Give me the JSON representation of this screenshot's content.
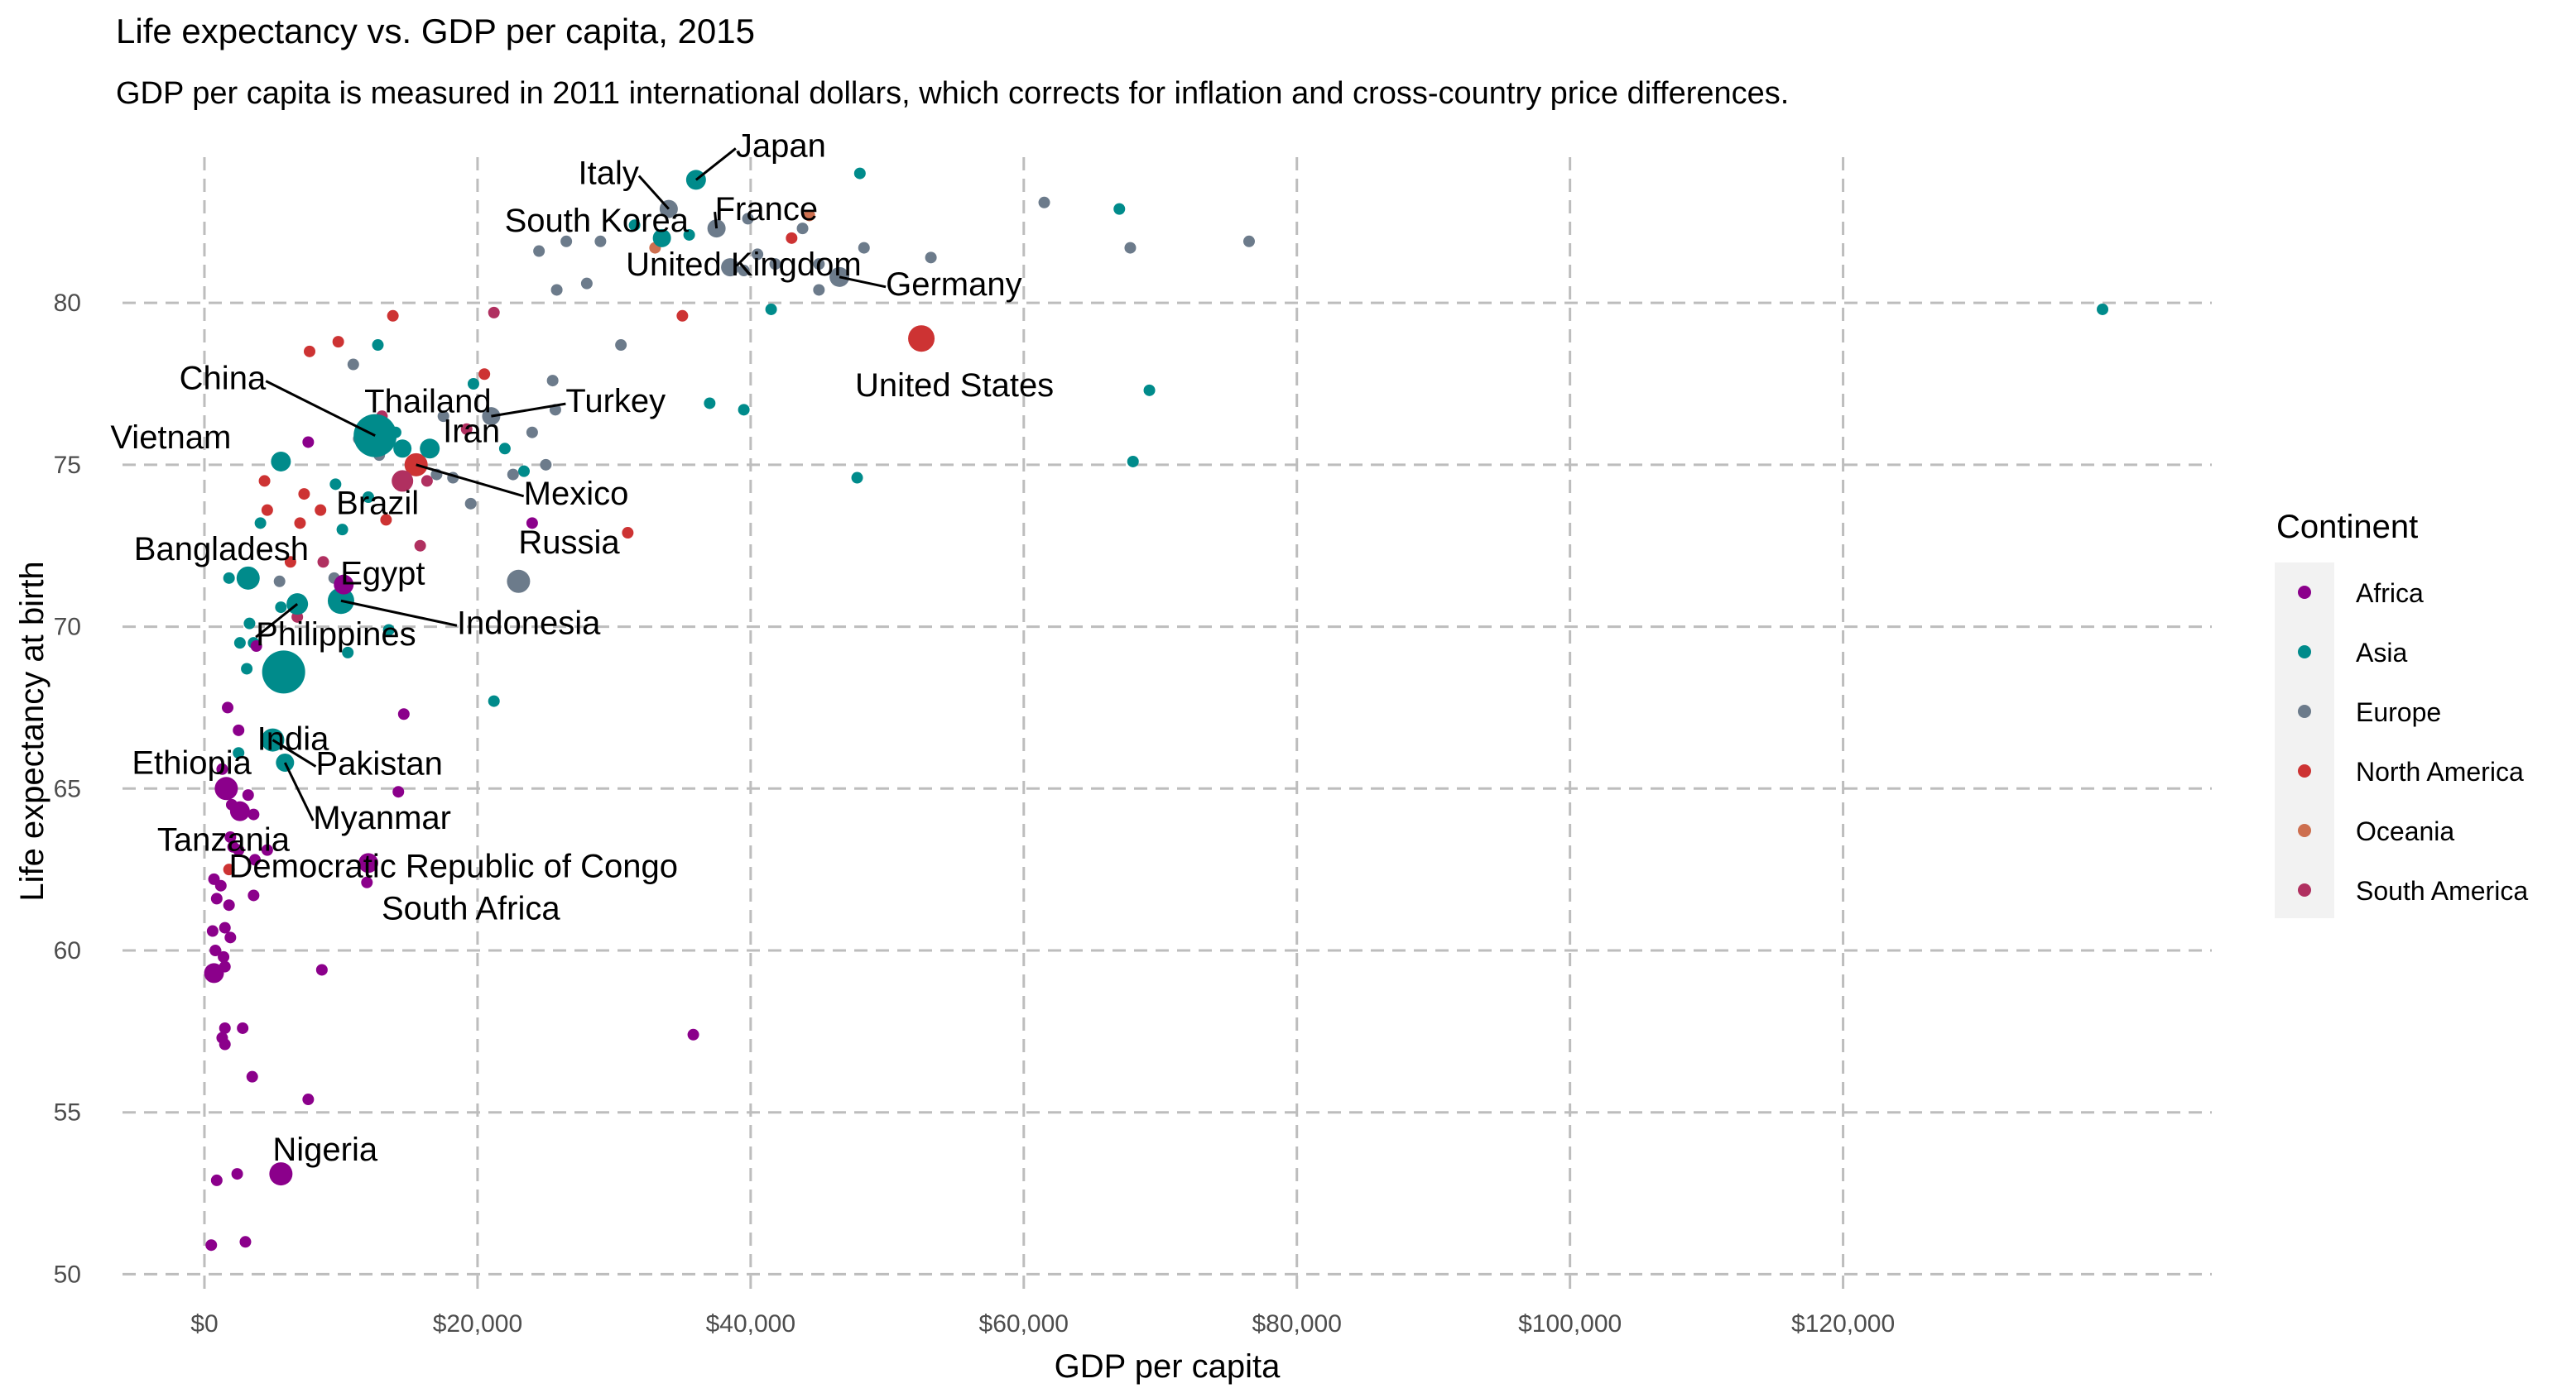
{
  "chart_data": {
    "type": "scatter",
    "title": "Life expectancy vs. GDP per capita, 2015",
    "subtitle": "GDP per capita is measured in 2011 international dollars, which corrects for inflation and cross-country price differences.",
    "xlabel": "GDP per capita",
    "ylabel": "Life expectancy at birth",
    "xlim": [
      -6000,
      147000
    ],
    "ylim": [
      49.5,
      84.5
    ],
    "x_ticks": [
      0,
      20000,
      40000,
      60000,
      80000,
      100000,
      120000
    ],
    "x_tick_labels": [
      "$0",
      "$20,000",
      "$40,000",
      "$60,000",
      "$80,000",
      "$100,000",
      "$120,000"
    ],
    "y_ticks": [
      50,
      55,
      60,
      65,
      70,
      75,
      80
    ],
    "y_tick_labels": [
      "50",
      "55",
      "60",
      "65",
      "70",
      "75",
      "80"
    ],
    "grid": true,
    "legend_position": "right",
    "legend_title": "Continent",
    "continents": [
      {
        "name": "Africa",
        "color": "#8B008B"
      },
      {
        "name": "Asia",
        "color": "#008B8B"
      },
      {
        "name": "Europe",
        "color": "#6C7B8B"
      },
      {
        "name": "North America",
        "color": "#CD3333"
      },
      {
        "name": "Oceania",
        "color": "#CD6F4F"
      },
      {
        "name": "South America",
        "color": "#B03060"
      }
    ],
    "labeled_points": [
      {
        "label": "Japan",
        "x": 36000,
        "y": 83.8,
        "continent": "Asia",
        "r": 12
      },
      {
        "label": "Italy",
        "x": 34000,
        "y": 82.9,
        "continent": "Europe",
        "r": 11
      },
      {
        "label": "France",
        "x": 37500,
        "y": 82.3,
        "continent": "Europe",
        "r": 11
      },
      {
        "label": "South Korea",
        "x": 33500,
        "y": 82.0,
        "continent": "Asia",
        "r": 11
      },
      {
        "label": "United Kingdom",
        "x": 38500,
        "y": 81.1,
        "continent": "Europe",
        "r": 11
      },
      {
        "label": "Germany",
        "x": 46500,
        "y": 80.8,
        "continent": "Europe",
        "r": 12
      },
      {
        "label": "United States",
        "x": 52500,
        "y": 78.9,
        "continent": "North America",
        "r": 16
      },
      {
        "label": "Turkey",
        "x": 21000,
        "y": 76.5,
        "continent": "Europe",
        "r": 11
      },
      {
        "label": "China",
        "x": 12500,
        "y": 75.9,
        "continent": "Asia",
        "r": 26
      },
      {
        "label": "Thailand",
        "x": 14500,
        "y": 75.5,
        "continent": "Asia",
        "r": 11
      },
      {
        "label": "Iran",
        "x": 16500,
        "y": 75.5,
        "continent": "Asia",
        "r": 12
      },
      {
        "label": "Vietnam",
        "x": 5600,
        "y": 75.1,
        "continent": "Asia",
        "r": 12
      },
      {
        "label": "Mexico",
        "x": 15500,
        "y": 75.0,
        "continent": "North America",
        "r": 14
      },
      {
        "label": "Brazil",
        "x": 14500,
        "y": 74.5,
        "continent": "South America",
        "r": 13
      },
      {
        "label": "Russia",
        "x": 23000,
        "y": 71.4,
        "continent": "Europe",
        "r": 14
      },
      {
        "label": "Bangladesh",
        "x": 3200,
        "y": 71.5,
        "continent": "Asia",
        "r": 14
      },
      {
        "label": "Egypt",
        "x": 10200,
        "y": 71.3,
        "continent": "Africa",
        "r": 12
      },
      {
        "label": "Indonesia",
        "x": 10000,
        "y": 70.8,
        "continent": "Asia",
        "r": 16
      },
      {
        "label": "Philippines",
        "x": 6800,
        "y": 70.7,
        "continent": "Asia",
        "r": 13
      },
      {
        "label": "India",
        "x": 5800,
        "y": 68.6,
        "continent": "Asia",
        "r": 26
      },
      {
        "label": "Pakistan",
        "x": 5000,
        "y": 66.5,
        "continent": "Asia",
        "r": 14
      },
      {
        "label": "Myanmar",
        "x": 5900,
        "y": 65.8,
        "continent": "Asia",
        "r": 11
      },
      {
        "label": "Ethiopia",
        "x": 1600,
        "y": 65.0,
        "continent": "Africa",
        "r": 14
      },
      {
        "label": "Tanzania",
        "x": 2600,
        "y": 64.3,
        "continent": "Africa",
        "r": 12
      },
      {
        "label": "South Africa",
        "x": 12000,
        "y": 62.7,
        "continent": "Africa",
        "r": 12
      },
      {
        "label": "Democratic Republic of Congo",
        "x": 700,
        "y": 59.3,
        "continent": "Africa",
        "r": 12
      },
      {
        "label": "Nigeria",
        "x": 5600,
        "y": 53.1,
        "continent": "Africa",
        "r": 14
      }
    ],
    "other_points": [
      {
        "x": 48000,
        "y": 84.0,
        "continent": "Asia"
      },
      {
        "x": 61500,
        "y": 83.1,
        "continent": "Europe"
      },
      {
        "x": 67000,
        "y": 82.9,
        "continent": "Asia"
      },
      {
        "x": 76500,
        "y": 81.9,
        "continent": "Europe"
      },
      {
        "x": 67800,
        "y": 81.7,
        "continent": "Europe"
      },
      {
        "x": 53200,
        "y": 81.4,
        "continent": "Europe"
      },
      {
        "x": 48300,
        "y": 81.7,
        "continent": "Europe"
      },
      {
        "x": 44300,
        "y": 82.7,
        "continent": "Oceania"
      },
      {
        "x": 43000,
        "y": 82.0,
        "continent": "North America"
      },
      {
        "x": 43800,
        "y": 82.3,
        "continent": "Europe"
      },
      {
        "x": 45000,
        "y": 81.2,
        "continent": "Europe"
      },
      {
        "x": 40500,
        "y": 81.5,
        "continent": "Europe"
      },
      {
        "x": 41800,
        "y": 81.2,
        "continent": "Europe"
      },
      {
        "x": 39500,
        "y": 81.0,
        "continent": "Europe"
      },
      {
        "x": 39800,
        "y": 82.6,
        "continent": "Europe"
      },
      {
        "x": 35500,
        "y": 82.1,
        "continent": "Asia"
      },
      {
        "x": 31500,
        "y": 82.4,
        "continent": "Asia"
      },
      {
        "x": 33000,
        "y": 81.7,
        "continent": "Oceania"
      },
      {
        "x": 29000,
        "y": 81.9,
        "continent": "Europe"
      },
      {
        "x": 26500,
        "y": 81.9,
        "continent": "Europe"
      },
      {
        "x": 24500,
        "y": 81.6,
        "continent": "Europe"
      },
      {
        "x": 28000,
        "y": 80.6,
        "continent": "Europe"
      },
      {
        "x": 25800,
        "y": 80.4,
        "continent": "Europe"
      },
      {
        "x": 41500,
        "y": 79.8,
        "continent": "Asia"
      },
      {
        "x": 35000,
        "y": 79.6,
        "continent": "North America"
      },
      {
        "x": 45000,
        "y": 80.4,
        "continent": "Europe"
      },
      {
        "x": 139000,
        "y": 79.8,
        "continent": "Asia"
      },
      {
        "x": 69200,
        "y": 77.3,
        "continent": "Asia"
      },
      {
        "x": 68000,
        "y": 75.1,
        "continent": "Asia"
      },
      {
        "x": 47800,
        "y": 74.6,
        "continent": "Asia"
      },
      {
        "x": 30500,
        "y": 78.7,
        "continent": "Europe"
      },
      {
        "x": 25500,
        "y": 77.6,
        "continent": "Europe"
      },
      {
        "x": 25700,
        "y": 76.7,
        "continent": "Europe"
      },
      {
        "x": 24000,
        "y": 76.0,
        "continent": "Europe"
      },
      {
        "x": 37000,
        "y": 76.9,
        "continent": "Asia"
      },
      {
        "x": 39500,
        "y": 76.7,
        "continent": "Asia"
      },
      {
        "x": 22000,
        "y": 75.5,
        "continent": "Asia"
      },
      {
        "x": 23400,
        "y": 74.8,
        "continent": "Asia"
      },
      {
        "x": 22600,
        "y": 74.7,
        "continent": "Europe"
      },
      {
        "x": 25000,
        "y": 75.0,
        "continent": "Europe"
      },
      {
        "x": 31000,
        "y": 72.9,
        "continent": "North America"
      },
      {
        "x": 24000,
        "y": 73.2,
        "continent": "Africa"
      },
      {
        "x": 21200,
        "y": 67.7,
        "continent": "Asia"
      },
      {
        "x": 35800,
        "y": 57.4,
        "continent": "Africa"
      },
      {
        "x": 21200,
        "y": 79.7,
        "continent": "South America"
      },
      {
        "x": 20500,
        "y": 77.8,
        "continent": "North America"
      },
      {
        "x": 19200,
        "y": 76.1,
        "continent": "South America"
      },
      {
        "x": 17500,
        "y": 76.5,
        "continent": "Europe"
      },
      {
        "x": 19700,
        "y": 77.5,
        "continent": "Asia"
      },
      {
        "x": 18200,
        "y": 74.6,
        "continent": "Europe"
      },
      {
        "x": 19500,
        "y": 73.8,
        "continent": "Europe"
      },
      {
        "x": 17000,
        "y": 74.7,
        "continent": "Europe"
      },
      {
        "x": 13800,
        "y": 79.6,
        "continent": "North America"
      },
      {
        "x": 12700,
        "y": 78.7,
        "continent": "Asia"
      },
      {
        "x": 9800,
        "y": 78.8,
        "continent": "North America"
      },
      {
        "x": 7700,
        "y": 78.5,
        "continent": "North America"
      },
      {
        "x": 10900,
        "y": 78.1,
        "continent": "Europe"
      },
      {
        "x": 13000,
        "y": 76.5,
        "continent": "South America"
      },
      {
        "x": 14000,
        "y": 76.0,
        "continent": "Asia"
      },
      {
        "x": 11300,
        "y": 75.8,
        "continent": "Europe"
      },
      {
        "x": 7600,
        "y": 75.7,
        "continent": "Africa"
      },
      {
        "x": 12800,
        "y": 75.3,
        "continent": "Europe"
      },
      {
        "x": 16300,
        "y": 74.5,
        "continent": "South America"
      },
      {
        "x": 9600,
        "y": 74.4,
        "continent": "Asia"
      },
      {
        "x": 7300,
        "y": 74.1,
        "continent": "North America"
      },
      {
        "x": 4400,
        "y": 74.5,
        "continent": "North America"
      },
      {
        "x": 8500,
        "y": 73.6,
        "continent": "North America"
      },
      {
        "x": 4600,
        "y": 73.6,
        "continent": "North America"
      },
      {
        "x": 13300,
        "y": 73.3,
        "continent": "North America"
      },
      {
        "x": 7000,
        "y": 73.2,
        "continent": "North America"
      },
      {
        "x": 4100,
        "y": 73.2,
        "continent": "Asia"
      },
      {
        "x": 10100,
        "y": 73.0,
        "continent": "Asia"
      },
      {
        "x": 12000,
        "y": 74.0,
        "continent": "Asia"
      },
      {
        "x": 15800,
        "y": 72.5,
        "continent": "South America"
      },
      {
        "x": 6300,
        "y": 72.0,
        "continent": "North America"
      },
      {
        "x": 8700,
        "y": 72.0,
        "continent": "South America"
      },
      {
        "x": 1800,
        "y": 71.5,
        "continent": "Asia"
      },
      {
        "x": 5500,
        "y": 71.4,
        "continent": "Europe"
      },
      {
        "x": 9500,
        "y": 71.5,
        "continent": "Europe"
      },
      {
        "x": 13500,
        "y": 69.9,
        "continent": "Asia"
      },
      {
        "x": 6800,
        "y": 70.3,
        "continent": "South America"
      },
      {
        "x": 5600,
        "y": 70.6,
        "continent": "Asia"
      },
      {
        "x": 3300,
        "y": 70.1,
        "continent": "Asia"
      },
      {
        "x": 3600,
        "y": 69.5,
        "continent": "Asia"
      },
      {
        "x": 2600,
        "y": 69.5,
        "continent": "Asia"
      },
      {
        "x": 3800,
        "y": 69.4,
        "continent": "Africa"
      },
      {
        "x": 3100,
        "y": 68.7,
        "continent": "Asia"
      },
      {
        "x": 10500,
        "y": 69.2,
        "continent": "Asia"
      },
      {
        "x": 1700,
        "y": 67.5,
        "continent": "Africa"
      },
      {
        "x": 14600,
        "y": 67.3,
        "continent": "Africa"
      },
      {
        "x": 2500,
        "y": 66.8,
        "continent": "Africa"
      },
      {
        "x": 2500,
        "y": 66.1,
        "continent": "Asia"
      },
      {
        "x": 1300,
        "y": 65.6,
        "continent": "Africa"
      },
      {
        "x": 3200,
        "y": 64.8,
        "continent": "Africa"
      },
      {
        "x": 14200,
        "y": 64.9,
        "continent": "Africa"
      },
      {
        "x": 2000,
        "y": 64.5,
        "continent": "Africa"
      },
      {
        "x": 3600,
        "y": 64.2,
        "continent": "Africa"
      },
      {
        "x": 1900,
        "y": 63.5,
        "continent": "Africa"
      },
      {
        "x": 2100,
        "y": 63.2,
        "continent": "Africa"
      },
      {
        "x": 2500,
        "y": 63.1,
        "continent": "Africa"
      },
      {
        "x": 4600,
        "y": 63.1,
        "continent": "Africa"
      },
      {
        "x": 3700,
        "y": 62.8,
        "continent": "Africa"
      },
      {
        "x": 1800,
        "y": 62.5,
        "continent": "North America"
      },
      {
        "x": 700,
        "y": 62.2,
        "continent": "Africa"
      },
      {
        "x": 1200,
        "y": 62.0,
        "continent": "Africa"
      },
      {
        "x": 11900,
        "y": 62.1,
        "continent": "Africa"
      },
      {
        "x": 3600,
        "y": 61.7,
        "continent": "Africa"
      },
      {
        "x": 900,
        "y": 61.6,
        "continent": "Africa"
      },
      {
        "x": 1800,
        "y": 61.4,
        "continent": "Africa"
      },
      {
        "x": 1500,
        "y": 60.7,
        "continent": "Africa"
      },
      {
        "x": 600,
        "y": 60.6,
        "continent": "Africa"
      },
      {
        "x": 1900,
        "y": 60.4,
        "continent": "Africa"
      },
      {
        "x": 800,
        "y": 60.0,
        "continent": "Africa"
      },
      {
        "x": 1400,
        "y": 59.8,
        "continent": "Africa"
      },
      {
        "x": 1500,
        "y": 59.5,
        "continent": "Africa"
      },
      {
        "x": 8600,
        "y": 59.4,
        "continent": "Africa"
      },
      {
        "x": 1500,
        "y": 57.6,
        "continent": "Africa"
      },
      {
        "x": 2800,
        "y": 57.6,
        "continent": "Africa"
      },
      {
        "x": 1300,
        "y": 57.3,
        "continent": "Africa"
      },
      {
        "x": 1500,
        "y": 57.1,
        "continent": "Africa"
      },
      {
        "x": 3500,
        "y": 56.1,
        "continent": "Africa"
      },
      {
        "x": 7600,
        "y": 55.4,
        "continent": "Africa"
      },
      {
        "x": 2400,
        "y": 53.1,
        "continent": "Africa"
      },
      {
        "x": 900,
        "y": 52.9,
        "continent": "Africa"
      },
      {
        "x": 3000,
        "y": 51.0,
        "continent": "Africa"
      },
      {
        "x": 500,
        "y": 50.9,
        "continent": "Africa"
      }
    ]
  }
}
